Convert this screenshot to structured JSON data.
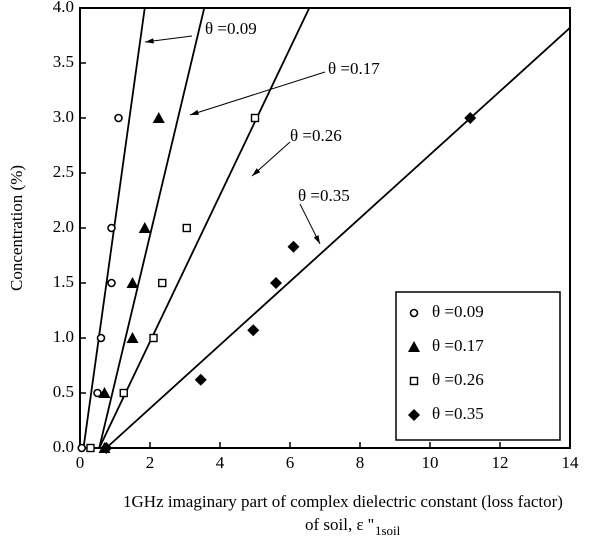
{
  "chart_data": {
    "type": "scatter",
    "ylabel": "Concentration (%)",
    "xlabel": [
      "1GHz imaginary part of complex dielectric constant (loss factor)",
      "of soil, ε ''"
    ],
    "xlabel_subscript": "1soil",
    "xlim": [
      0,
      14
    ],
    "ylim": [
      0,
      4
    ],
    "xticks": [
      0,
      2,
      4,
      6,
      8,
      10,
      12,
      14
    ],
    "yticks": [
      {
        "value": 0,
        "label": "0.0"
      },
      {
        "value": 0.5,
        "label": "0.5"
      },
      {
        "value": 1,
        "label": "1.0"
      },
      {
        "value": 1.5,
        "label": "1.5"
      },
      {
        "value": 2,
        "label": "2.0"
      },
      {
        "value": 2.5,
        "label": "2.5"
      },
      {
        "value": 3,
        "label": "3.0"
      },
      {
        "value": 3.5,
        "label": "3.5"
      },
      {
        "value": 4,
        "label": "4.0"
      }
    ],
    "legend": "lower right",
    "series": [
      {
        "name": "θ =0.09",
        "marker": "circle-open",
        "color": "#000000",
        "x": [
          0.05,
          0.5,
          0.6,
          0.9,
          0.9,
          1.1
        ],
        "values": [
          0,
          0.5,
          1.0,
          1.5,
          2.0,
          3.0
        ]
      },
      {
        "name": "θ =0.17",
        "marker": "triangle",
        "color": "#000000",
        "x": [
          0.7,
          0.7,
          1.5,
          1.5,
          1.85,
          2.25
        ],
        "values": [
          0,
          0.5,
          1.0,
          1.5,
          2.0,
          3.0
        ]
      },
      {
        "name": "θ =0.26",
        "marker": "square-open",
        "color": "#000000",
        "x": [
          0.3,
          1.25,
          2.1,
          2.35,
          3.05,
          5.0
        ],
        "values": [
          0,
          0.5,
          1.0,
          1.5,
          2.0,
          3.0
        ]
      },
      {
        "name": "θ =0.35",
        "marker": "diamond",
        "color": "#000000",
        "x": [
          0.75,
          3.45,
          4.95,
          5.6,
          6.1,
          11.15
        ],
        "values": [
          0,
          0.62,
          1.07,
          1.5,
          1.83,
          3.0
        ]
      }
    ],
    "fit_lines": [
      {
        "x": [
          0.1,
          1.85
        ],
        "values": [
          0,
          4
        ]
      },
      {
        "x": [
          0.55,
          3.55
        ],
        "values": [
          0,
          4
        ]
      },
      {
        "x": [
          0.55,
          6.55
        ],
        "values": [
          0,
          4
        ]
      },
      {
        "x": [
          0.75,
          14
        ],
        "values": [
          0,
          3.82
        ]
      }
    ],
    "annotations": [
      "θ =0.09",
      "θ =0.17",
      "θ =0.26",
      "θ =0.35"
    ]
  }
}
